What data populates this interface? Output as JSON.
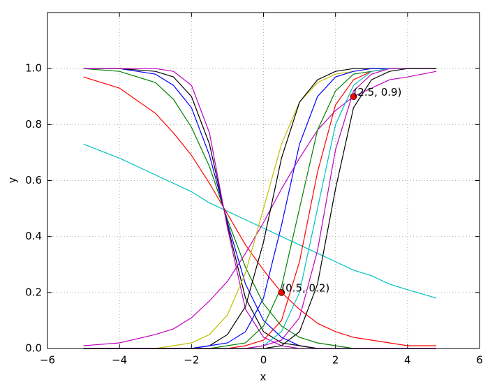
{
  "chart_data": {
    "type": "line",
    "xlabel": "x",
    "ylabel": "y",
    "xlim": [
      -6,
      6
    ],
    "ylim": [
      0,
      1.2
    ],
    "xticks": [
      {
        "value": -6,
        "label": "−6"
      },
      {
        "value": -4,
        "label": "−4"
      },
      {
        "value": -2,
        "label": "−2"
      },
      0,
      2,
      4,
      6
    ],
    "yticks": [
      {
        "value": 0,
        "label": "0.0"
      },
      {
        "value": 0.2,
        "label": "0.2"
      },
      {
        "value": 0.4,
        "label": "0.4"
      },
      {
        "value": 0.6,
        "label": "0.6"
      },
      {
        "value": 0.8,
        "label": "0.8"
      },
      {
        "value": 1,
        "label": "1.0"
      }
    ],
    "grid": true,
    "x": [
      -5,
      -4,
      -3,
      -2.5,
      -2,
      -1.5,
      -1,
      -0.5,
      0,
      0.5,
      1,
      1.5,
      2,
      2.5,
      3,
      3.5,
      4,
      4.8
    ],
    "series": [
      {
        "color": "#00bfbf",
        "values": [
          0.73,
          0.68,
          0.62,
          0.59,
          0.56,
          0.52,
          0.49,
          0.46,
          0.43,
          0.4,
          0.37,
          0.34,
          0.31,
          0.28,
          0.26,
          0.23,
          0.21,
          0.18
        ]
      },
      {
        "color": "#ff0000",
        "values": [
          0.97,
          0.93,
          0.84,
          0.77,
          0.69,
          0.59,
          0.48,
          0.37,
          0.28,
          0.2,
          0.14,
          0.09,
          0.06,
          0.04,
          0.03,
          0.02,
          0.01,
          0.01
        ]
      },
      {
        "color": "#008000",
        "values": [
          1.0,
          0.99,
          0.95,
          0.89,
          0.79,
          0.65,
          0.46,
          0.29,
          0.16,
          0.08,
          0.04,
          0.02,
          0.01,
          0,
          0,
          0,
          0,
          0
        ]
      },
      {
        "color": "#0000ff",
        "values": [
          1,
          1,
          0.98,
          0.94,
          0.86,
          0.69,
          0.45,
          0.23,
          0.1,
          0.04,
          0.01,
          0,
          0,
          0,
          0,
          0,
          0,
          0
        ]
      },
      {
        "color": "#000000",
        "values": [
          1,
          1,
          0.99,
          0.97,
          0.9,
          0.73,
          0.44,
          0.18,
          0.06,
          0.02,
          0.01,
          0,
          0,
          0,
          0,
          0,
          0,
          0
        ]
      },
      {
        "color": "#bf00bf",
        "values": [
          1,
          1,
          1,
          0.99,
          0.94,
          0.77,
          0.43,
          0.14,
          0.04,
          0.01,
          0,
          0,
          0,
          0,
          0,
          0,
          0,
          0
        ]
      },
      {
        "color": "#bf00bf",
        "values": [
          0.01,
          0.02,
          0.05,
          0.07,
          0.11,
          0.17,
          0.24,
          0.34,
          0.45,
          0.57,
          0.68,
          0.78,
          0.85,
          0.9,
          0.93,
          0.96,
          0.97,
          0.99
        ]
      },
      {
        "color": "#bfbf00",
        "values": [
          0,
          0,
          0,
          0.01,
          0.02,
          0.05,
          0.12,
          0.27,
          0.5,
          0.73,
          0.88,
          0.95,
          0.98,
          0.99,
          1,
          1,
          1,
          1
        ]
      },
      {
        "color": "#000000",
        "values": [
          0,
          0,
          0,
          0,
          0,
          0.01,
          0.05,
          0.15,
          0.38,
          0.68,
          0.88,
          0.96,
          0.99,
          1,
          1,
          1,
          1,
          1
        ]
      },
      {
        "color": "#0000ff",
        "values": [
          0,
          0,
          0,
          0,
          0,
          0.01,
          0.02,
          0.06,
          0.18,
          0.44,
          0.73,
          0.9,
          0.97,
          0.99,
          1,
          1,
          1,
          1
        ]
      },
      {
        "color": "#008000",
        "values": [
          0,
          0,
          0,
          0,
          0,
          0,
          0.01,
          0.02,
          0.08,
          0.22,
          0.5,
          0.78,
          0.92,
          0.98,
          0.99,
          1,
          1,
          1
        ]
      },
      {
        "color": "#ff0000",
        "values": [
          0,
          0,
          0,
          0,
          0,
          0,
          0,
          0.01,
          0.03,
          0.1,
          0.31,
          0.63,
          0.87,
          0.96,
          0.99,
          1,
          1,
          1
        ]
      },
      {
        "color": "#00bfbf",
        "values": [
          0,
          0,
          0,
          0,
          0,
          0,
          0,
          0,
          0.01,
          0.06,
          0.2,
          0.5,
          0.8,
          0.94,
          0.99,
          1,
          1,
          1
        ]
      },
      {
        "color": "#bf00bf",
        "values": [
          0,
          0,
          0,
          0,
          0,
          0,
          0,
          0,
          0.01,
          0.03,
          0.11,
          0.35,
          0.71,
          0.92,
          0.98,
          1,
          1,
          1
        ]
      },
      {
        "color": "#000000",
        "values": [
          0,
          0,
          0,
          0,
          0,
          0,
          0,
          0,
          0,
          0.01,
          0.06,
          0.23,
          0.57,
          0.86,
          0.96,
          0.99,
          1,
          1
        ]
      }
    ],
    "points": [
      {
        "x": 0.5,
        "y": 0.2,
        "label": "(0.5, 0.2)",
        "color": "#ff0000"
      },
      {
        "x": 2.5,
        "y": 0.9,
        "label": "(2.5, 0.9)",
        "color": "#ff0000"
      }
    ]
  }
}
